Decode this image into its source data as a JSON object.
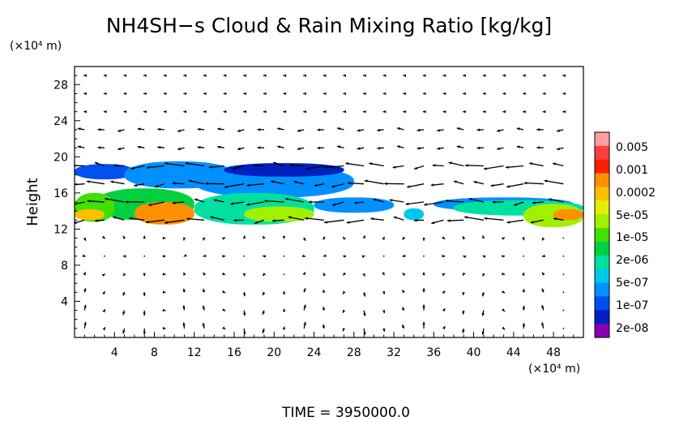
{
  "chart_data": {
    "type": "heatmap",
    "title": "NH4SH−s Cloud & Rain Mixing Ratio [kg/kg]",
    "ylabel": "Height",
    "x_unit_label": "(×10⁴ m)",
    "y_unit_label": "(×10⁴ m)",
    "footer": "TIME  =  3950000.0",
    "xlim": [
      0,
      51
    ],
    "ylim": [
      0,
      30
    ],
    "x_ticks": [
      4,
      8,
      12,
      16,
      20,
      24,
      28,
      32,
      36,
      40,
      44,
      48
    ],
    "y_ticks": [
      4,
      8,
      12,
      16,
      20,
      24,
      28
    ],
    "colorbar": {
      "labels": [
        "0.005",
        "0.001",
        "0.0002",
        "5e-05",
        "1e-05",
        "2e-06",
        "5e-07",
        "1e-07",
        "2e-08"
      ],
      "colors": [
        "#ff9f9f",
        "#ff4040",
        "#ff2000",
        "#ff9000",
        "#ffc000",
        "#e0f000",
        "#a0f000",
        "#40e000",
        "#00d040",
        "#00e0a0",
        "#00c8e8",
        "#0090ff",
        "#0050f0",
        "#0020c0",
        "#8a00b0"
      ]
    },
    "cloud_blobs": [
      {
        "x": [
          0,
          6
        ],
        "y": [
          17.5,
          19.2
        ],
        "level": 12
      },
      {
        "x": [
          5,
          16
        ],
        "y": [
          16.5,
          19.5
        ],
        "level": 11
      },
      {
        "x": [
          12,
          28
        ],
        "y": [
          15.5,
          19.0
        ],
        "level": 11
      },
      {
        "x": [
          15,
          27
        ],
        "y": [
          17.8,
          19.3
        ],
        "level": 13
      },
      {
        "x": [
          2,
          12
        ],
        "y": [
          13.0,
          16.5
        ],
        "level": 8
      },
      {
        "x": [
          0,
          4
        ],
        "y": [
          12.8,
          16.0
        ],
        "level": 7
      },
      {
        "x": [
          6,
          12
        ],
        "y": [
          12.5,
          15.0
        ],
        "level": 3
      },
      {
        "x": [
          0,
          3
        ],
        "y": [
          13.0,
          14.2
        ],
        "level": 4
      },
      {
        "x": [
          12,
          24
        ],
        "y": [
          12.5,
          16.0
        ],
        "level": 9
      },
      {
        "x": [
          17,
          24
        ],
        "y": [
          12.8,
          14.5
        ],
        "level": 6
      },
      {
        "x": [
          24,
          32
        ],
        "y": [
          13.8,
          15.5
        ],
        "level": 11
      },
      {
        "x": [
          33,
          35
        ],
        "y": [
          13.0,
          14.3
        ],
        "level": 10
      },
      {
        "x": [
          36,
          50
        ],
        "y": [
          14.0,
          15.5
        ],
        "level": 11
      },
      {
        "x": [
          38,
          51
        ],
        "y": [
          13.5,
          15.2
        ],
        "level": 9
      },
      {
        "x": [
          45,
          51
        ],
        "y": [
          12.2,
          14.8
        ],
        "level": 6
      },
      {
        "x": [
          48,
          51
        ],
        "y": [
          13.0,
          14.2
        ],
        "level": 3
      }
    ],
    "vector_field": {
      "x_spacing": 2,
      "y_spacing": 2,
      "x_range": [
        0,
        51
      ],
      "y_range": [
        0,
        30
      ]
    }
  }
}
